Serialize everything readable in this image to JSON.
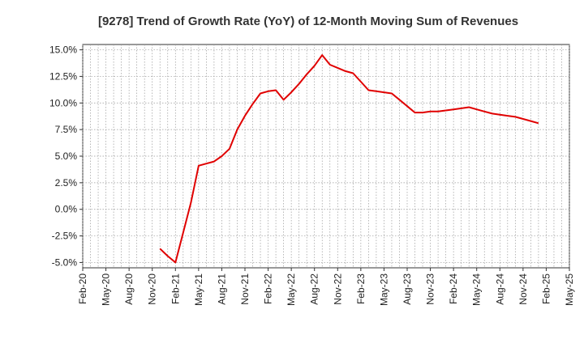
{
  "chart_data": {
    "type": "line",
    "title": "[9278]  Trend of Growth Rate (YoY) of 12-Month Moving Sum of Revenues",
    "xlabel": "",
    "ylabel": "",
    "x_tick_labels": [
      "Feb-20",
      "May-20",
      "Aug-20",
      "Nov-20",
      "Feb-21",
      "May-21",
      "Aug-21",
      "Nov-21",
      "Feb-22",
      "May-22",
      "Aug-22",
      "Nov-22",
      "Feb-23",
      "May-23",
      "Aug-23",
      "Nov-23",
      "Feb-24",
      "May-24",
      "Aug-24",
      "Nov-24",
      "Feb-25",
      "May-25"
    ],
    "y_tick_labels": [
      "15.0%",
      "12.5%",
      "10.0%",
      "7.5%",
      "5.0%",
      "2.5%",
      "0.0%",
      "-2.5%",
      "-5.0%"
    ],
    "y_ticks": [
      15,
      12.5,
      10,
      7.5,
      5,
      2.5,
      0,
      -2.5,
      -5
    ],
    "ylim": [
      -5.5,
      15.5
    ],
    "grid": true,
    "series_color": "#e00000",
    "series": [
      {
        "values": [
          {
            "x": "Dec-20",
            "y": -3.7
          },
          {
            "x": "Jan-21",
            "y": -4.4
          },
          {
            "x": "Feb-21",
            "y": -5.0
          },
          {
            "x": "Mar-21",
            "y": -2.2
          },
          {
            "x": "Apr-21",
            "y": 0.6
          },
          {
            "x": "May-21",
            "y": 4.1
          },
          {
            "x": "Jun-21",
            "y": 4.3
          },
          {
            "x": "Jul-21",
            "y": 4.5
          },
          {
            "x": "Aug-21",
            "y": 5.0
          },
          {
            "x": "Sep-21",
            "y": 5.7
          },
          {
            "x": "Oct-21",
            "y": 7.5
          },
          {
            "x": "Nov-21",
            "y": 8.8
          },
          {
            "x": "Dec-21",
            "y": 9.9
          },
          {
            "x": "Jan-22",
            "y": 10.9
          },
          {
            "x": "Feb-22",
            "y": 11.1
          },
          {
            "x": "Mar-22",
            "y": 11.2
          },
          {
            "x": "Apr-22",
            "y": 10.3
          },
          {
            "x": "May-22",
            "y": 11.0
          },
          {
            "x": "Jun-22",
            "y": 11.8
          },
          {
            "x": "Jul-22",
            "y": 12.7
          },
          {
            "x": "Aug-22",
            "y": 13.5
          },
          {
            "x": "Sep-22",
            "y": 14.5
          },
          {
            "x": "Oct-22",
            "y": 13.6
          },
          {
            "x": "Nov-22",
            "y": 13.3
          },
          {
            "x": "Dec-22",
            "y": 13.0
          },
          {
            "x": "Jan-23",
            "y": 12.8
          },
          {
            "x": "Feb-23",
            "y": 12.0
          },
          {
            "x": "Mar-23",
            "y": 11.2
          },
          {
            "x": "Apr-23",
            "y": 11.1
          },
          {
            "x": "May-23",
            "y": 11.0
          },
          {
            "x": "Jun-23",
            "y": 10.9
          },
          {
            "x": "Jul-23",
            "y": 10.3
          },
          {
            "x": "Aug-23",
            "y": 9.7
          },
          {
            "x": "Sep-23",
            "y": 9.1
          },
          {
            "x": "Oct-23",
            "y": 9.1
          },
          {
            "x": "Nov-23",
            "y": 9.2
          },
          {
            "x": "Dec-23",
            "y": 9.2
          },
          {
            "x": "Jan-24",
            "y": 9.3
          },
          {
            "x": "Feb-24",
            "y": 9.4
          },
          {
            "x": "Mar-24",
            "y": 9.5
          },
          {
            "x": "Apr-24",
            "y": 9.6
          },
          {
            "x": "May-24",
            "y": 9.4
          },
          {
            "x": "Jun-24",
            "y": 9.2
          },
          {
            "x": "Jul-24",
            "y": 9.0
          },
          {
            "x": "Aug-24",
            "y": 8.9
          },
          {
            "x": "Sep-24",
            "y": 8.8
          },
          {
            "x": "Oct-24",
            "y": 8.7
          },
          {
            "x": "Nov-24",
            "y": 8.5
          },
          {
            "x": "Dec-24",
            "y": 8.3
          },
          {
            "x": "Jan-25",
            "y": 8.1
          }
        ]
      }
    ]
  }
}
